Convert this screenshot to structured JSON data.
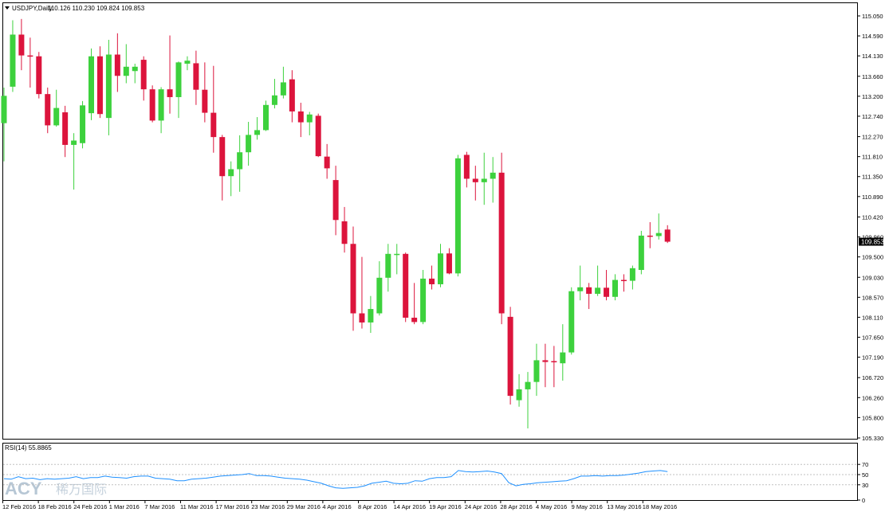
{
  "header": {
    "symbol_label": "USDJPY,Daily",
    "ohlc_text": "110.126 110.230 109.824 109.853"
  },
  "price_axis": {
    "ticks": [
      "115.050",
      "114.590",
      "114.130",
      "113.660",
      "113.200",
      "112.740",
      "112.270",
      "111.810",
      "111.350",
      "110.890",
      "110.420",
      "109.960",
      "109.500",
      "109.030",
      "108.570",
      "108.110",
      "107.650",
      "107.190",
      "106.720",
      "106.260",
      "105.800",
      "105.330"
    ],
    "current_price_label": "109.853"
  },
  "rsi": {
    "label": "RSI(14) 55.8865",
    "ticks": [
      "70",
      "50",
      "30",
      "0"
    ],
    "values": [
      42,
      41,
      46,
      42,
      43,
      40,
      42,
      41,
      42,
      43,
      46,
      42,
      44,
      44,
      47,
      45,
      44,
      43,
      46,
      47,
      47,
      43,
      42,
      41,
      38,
      38,
      41,
      42,
      43,
      45,
      47,
      48,
      49,
      50,
      52,
      48,
      48,
      47,
      45,
      43,
      42,
      41,
      39,
      36,
      33,
      28,
      24,
      23,
      24,
      25,
      28,
      33,
      35,
      37,
      33,
      32,
      33,
      38,
      37,
      42,
      44,
      44,
      46,
      58,
      56,
      55,
      56,
      57,
      55,
      52,
      34,
      28,
      31,
      32,
      34,
      35,
      36,
      37,
      38,
      42,
      47,
      47,
      48,
      47,
      48,
      48,
      49,
      51,
      53,
      56,
      57,
      58,
      55.8865
    ]
  },
  "watermark": {
    "brand": "ACY",
    "cn": "稀万国际"
  },
  "time_axis": {
    "labels": [
      "12 Feb 2016",
      "18 Feb 2016",
      "24 Feb 2016",
      "1 Mar 2016",
      "7 Mar 2016",
      "11 Mar 2016",
      "17 Mar 2016",
      "23 Mar 2016",
      "29 Mar 2016",
      "4 Apr 2016",
      "8 Apr 2016",
      "14 Apr 2016",
      "19 Apr 2016",
      "24 Apr 2016",
      "28 Apr 2016",
      "4 May 2016",
      "9 May 2016",
      "13 May 2016",
      "18 May 2016"
    ]
  },
  "colors": {
    "bull": "#3dd13d",
    "bear": "#dc143c",
    "rsi_line": "#1e90ff",
    "grid": "#c0c0c0",
    "axis": "#000000"
  },
  "chart_data": {
    "type": "candlestick",
    "symbol": "USDJPY",
    "timeframe": "Daily",
    "ylim": [
      105.33,
      115.05
    ],
    "candles": [
      {
        "o": 112.58,
        "h": 113.4,
        "l": 111.7,
        "c": 113.21
      },
      {
        "o": 113.42,
        "h": 114.95,
        "l": 113.3,
        "c": 114.62
      },
      {
        "o": 114.62,
        "h": 114.98,
        "l": 113.8,
        "c": 114.14
      },
      {
        "o": 114.14,
        "h": 114.55,
        "l": 113.4,
        "c": 114.12
      },
      {
        "o": 114.12,
        "h": 114.22,
        "l": 113.15,
        "c": 113.25
      },
      {
        "o": 113.25,
        "h": 113.4,
        "l": 112.35,
        "c": 112.53
      },
      {
        "o": 112.53,
        "h": 113.35,
        "l": 112.5,
        "c": 112.93
      },
      {
        "o": 112.83,
        "h": 112.98,
        "l": 111.8,
        "c": 112.08
      },
      {
        "o": 112.08,
        "h": 112.35,
        "l": 111.05,
        "c": 112.18
      },
      {
        "o": 112.12,
        "h": 113.09,
        "l": 112.0,
        "c": 112.99
      },
      {
        "o": 112.81,
        "h": 114.3,
        "l": 112.65,
        "c": 114.12
      },
      {
        "o": 114.12,
        "h": 114.35,
        "l": 112.7,
        "c": 112.79
      },
      {
        "o": 112.7,
        "h": 114.5,
        "l": 112.3,
        "c": 114.16
      },
      {
        "o": 114.16,
        "h": 114.65,
        "l": 113.3,
        "c": 113.67
      },
      {
        "o": 113.67,
        "h": 114.4,
        "l": 113.5,
        "c": 113.88
      },
      {
        "o": 113.78,
        "h": 113.95,
        "l": 113.5,
        "c": 113.88
      },
      {
        "o": 114.04,
        "h": 114.12,
        "l": 113.1,
        "c": 113.36
      },
      {
        "o": 113.36,
        "h": 113.45,
        "l": 112.6,
        "c": 112.64
      },
      {
        "o": 112.64,
        "h": 113.41,
        "l": 112.35,
        "c": 113.36
      },
      {
        "o": 113.36,
        "h": 114.6,
        "l": 112.8,
        "c": 113.18
      },
      {
        "o": 113.18,
        "h": 114.0,
        "l": 112.7,
        "c": 113.98
      },
      {
        "o": 113.95,
        "h": 114.12,
        "l": 113.8,
        "c": 114.02
      },
      {
        "o": 113.96,
        "h": 114.25,
        "l": 113.0,
        "c": 113.35
      },
      {
        "o": 113.35,
        "h": 113.98,
        "l": 112.6,
        "c": 112.82
      },
      {
        "o": 112.82,
        "h": 113.9,
        "l": 111.9,
        "c": 112.26
      },
      {
        "o": 112.26,
        "h": 112.31,
        "l": 110.8,
        "c": 111.36
      },
      {
        "o": 111.36,
        "h": 111.7,
        "l": 110.9,
        "c": 111.52
      },
      {
        "o": 111.52,
        "h": 112.3,
        "l": 111.0,
        "c": 111.91
      },
      {
        "o": 111.91,
        "h": 112.61,
        "l": 111.6,
        "c": 112.31
      },
      {
        "o": 112.31,
        "h": 112.72,
        "l": 112.2,
        "c": 112.42
      },
      {
        "o": 112.42,
        "h": 113.1,
        "l": 112.4,
        "c": 113.0
      },
      {
        "o": 113.0,
        "h": 113.6,
        "l": 112.92,
        "c": 113.22
      },
      {
        "o": 113.22,
        "h": 113.88,
        "l": 113.15,
        "c": 113.52
      },
      {
        "o": 113.59,
        "h": 113.8,
        "l": 112.6,
        "c": 112.85
      },
      {
        "o": 112.85,
        "h": 113.05,
        "l": 112.26,
        "c": 112.6
      },
      {
        "o": 112.6,
        "h": 112.84,
        "l": 112.3,
        "c": 112.78
      },
      {
        "o": 112.75,
        "h": 112.8,
        "l": 111.8,
        "c": 111.82
      },
      {
        "o": 111.81,
        "h": 112.1,
        "l": 111.3,
        "c": 111.54
      },
      {
        "o": 111.27,
        "h": 111.6,
        "l": 110.0,
        "c": 110.35
      },
      {
        "o": 110.32,
        "h": 110.65,
        "l": 109.6,
        "c": 109.8
      },
      {
        "o": 109.8,
        "h": 110.2,
        "l": 107.8,
        "c": 108.2
      },
      {
        "o": 108.2,
        "h": 109.5,
        "l": 107.85,
        "c": 107.99
      },
      {
        "o": 107.99,
        "h": 108.6,
        "l": 107.75,
        "c": 108.3
      },
      {
        "o": 108.2,
        "h": 109.4,
        "l": 108.15,
        "c": 109.02
      },
      {
        "o": 109.02,
        "h": 109.8,
        "l": 108.7,
        "c": 109.57
      },
      {
        "o": 109.57,
        "h": 109.8,
        "l": 109.1,
        "c": 109.57
      },
      {
        "o": 109.57,
        "h": 109.6,
        "l": 108.0,
        "c": 108.1
      },
      {
        "o": 108.1,
        "h": 108.9,
        "l": 107.95,
        "c": 108.0
      },
      {
        "o": 108.0,
        "h": 109.2,
        "l": 107.95,
        "c": 109.0
      },
      {
        "o": 109.0,
        "h": 109.3,
        "l": 108.75,
        "c": 108.87
      },
      {
        "o": 108.87,
        "h": 109.8,
        "l": 108.8,
        "c": 109.58
      },
      {
        "o": 109.58,
        "h": 109.7,
        "l": 109.1,
        "c": 109.12
      },
      {
        "o": 109.12,
        "h": 111.85,
        "l": 109.05,
        "c": 111.77
      },
      {
        "o": 111.85,
        "h": 111.92,
        "l": 111.1,
        "c": 111.3
      },
      {
        "o": 111.3,
        "h": 111.6,
        "l": 110.8,
        "c": 111.22
      },
      {
        "o": 111.22,
        "h": 111.9,
        "l": 110.7,
        "c": 111.3
      },
      {
        "o": 111.3,
        "h": 111.8,
        "l": 110.75,
        "c": 111.44
      },
      {
        "o": 111.44,
        "h": 111.9,
        "l": 107.95,
        "c": 108.2
      },
      {
        "o": 108.12,
        "h": 108.35,
        "l": 106.1,
        "c": 106.3
      },
      {
        "o": 106.2,
        "h": 106.8,
        "l": 106.05,
        "c": 106.45
      },
      {
        "o": 106.45,
        "h": 106.85,
        "l": 105.55,
        "c": 106.62
      },
      {
        "o": 106.62,
        "h": 107.5,
        "l": 106.3,
        "c": 107.12
      },
      {
        "o": 107.12,
        "h": 107.5,
        "l": 106.5,
        "c": 107.08
      },
      {
        "o": 107.1,
        "h": 107.45,
        "l": 106.5,
        "c": 107.08
      },
      {
        "o": 107.05,
        "h": 107.95,
        "l": 106.65,
        "c": 107.3
      },
      {
        "o": 107.3,
        "h": 108.8,
        "l": 107.25,
        "c": 108.71
      },
      {
        "o": 108.71,
        "h": 109.3,
        "l": 108.5,
        "c": 108.8
      },
      {
        "o": 108.8,
        "h": 108.9,
        "l": 108.3,
        "c": 108.65
      },
      {
        "o": 108.65,
        "h": 109.3,
        "l": 108.6,
        "c": 108.79
      },
      {
        "o": 108.79,
        "h": 109.2,
        "l": 108.5,
        "c": 108.58
      },
      {
        "o": 108.58,
        "h": 109.1,
        "l": 108.5,
        "c": 108.97
      },
      {
        "o": 108.97,
        "h": 109.1,
        "l": 108.7,
        "c": 108.95
      },
      {
        "o": 108.95,
        "h": 109.3,
        "l": 108.75,
        "c": 109.24
      },
      {
        "o": 109.2,
        "h": 110.1,
        "l": 109.1,
        "c": 109.99
      },
      {
        "o": 109.99,
        "h": 110.3,
        "l": 109.7,
        "c": 109.98
      },
      {
        "o": 109.98,
        "h": 110.5,
        "l": 109.9,
        "c": 110.05
      },
      {
        "o": 110.13,
        "h": 110.23,
        "l": 109.82,
        "c": 109.85
      }
    ],
    "rsi_period": 14,
    "rsi_last": 55.8865
  }
}
